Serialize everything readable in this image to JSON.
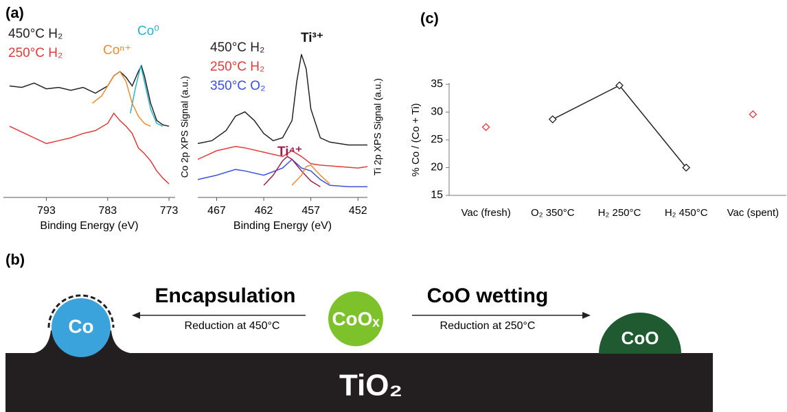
{
  "panel_labels": {
    "a": "(a)",
    "b": "(b)",
    "c": "(c)"
  },
  "chart_data": [
    {
      "type": "line",
      "xlabel": "Binding Energy (eV)",
      "ylabel": "Co 2p XPS Signal (a.u.)",
      "xlim": [
        800,
        772
      ],
      "ylim": [
        0,
        100
      ],
      "xticks": [
        793,
        783,
        773
      ],
      "series": [
        {
          "name": "450°C H₂",
          "color": "#222222",
          "x": [
            799,
            797,
            795,
            793,
            791,
            789,
            787,
            785,
            783,
            782,
            781,
            780,
            779,
            778,
            777.5,
            777,
            776,
            775,
            774,
            773
          ],
          "values": [
            76,
            75,
            78,
            74,
            75,
            73,
            75,
            71,
            76,
            83,
            86,
            82,
            76,
            86,
            90,
            83,
            64,
            52,
            49,
            48
          ]
        },
        {
          "name": "250°C H₂",
          "color": "#e03a3a",
          "x": [
            799,
            797,
            795,
            793,
            791,
            789,
            787,
            785,
            783,
            782,
            781,
            780,
            779,
            778,
            777,
            776,
            775,
            774,
            773
          ],
          "values": [
            48,
            44,
            40,
            36,
            38,
            40,
            43,
            45,
            50,
            57,
            52,
            48,
            43,
            33,
            29,
            24,
            17,
            12,
            8
          ]
        },
        {
          "name": "Co⁰",
          "color": "#26b3c9",
          "x": [
            779.3,
            778.5,
            777.6,
            777,
            776,
            775,
            774
          ],
          "values": [
            57,
            74,
            90,
            79,
            60,
            50,
            48
          ]
        },
        {
          "name": "Coⁿ⁺",
          "color": "#f08a2c",
          "x": [
            785.5,
            784,
            783,
            782,
            781,
            780,
            779,
            778,
            777,
            776
          ],
          "values": [
            64,
            69,
            76,
            83,
            86,
            79,
            64,
            55,
            50,
            48
          ]
        }
      ]
    },
    {
      "type": "line",
      "xlabel": "Binding Energy (eV)",
      "ylabel": "Ti 2p XPS Signal (a.u.)",
      "xlim": [
        469,
        451
      ],
      "ylim": [
        0,
        100
      ],
      "xticks": [
        467,
        462,
        457,
        452
      ],
      "series": [
        {
          "name": "450°C H₂",
          "color": "#222222",
          "x": [
            469,
            467.5,
            466,
            465,
            464,
            463,
            462,
            461,
            460,
            459,
            458.5,
            458,
            457.5,
            457,
            456,
            455,
            454,
            453,
            452,
            451
          ],
          "values": [
            36,
            38,
            45,
            55,
            58,
            52,
            43,
            38,
            40,
            52,
            79,
            98,
            88,
            60,
            40,
            37,
            36,
            35,
            35,
            35
          ]
        },
        {
          "name": "250°C H₂",
          "color": "#e03a3a",
          "x": [
            469,
            467,
            465,
            464,
            462,
            460,
            459,
            458,
            457,
            456,
            454,
            452,
            451
          ],
          "values": [
            25,
            31,
            34,
            33,
            30,
            27,
            31,
            27,
            22,
            21,
            20,
            19,
            20
          ]
        },
        {
          "name": "350°C O₂",
          "color": "#3a4fe0",
          "x": [
            469,
            467,
            465,
            464,
            462,
            460,
            459,
            458,
            457,
            456,
            455,
            453,
            451
          ],
          "values": [
            11,
            14,
            18,
            17,
            14,
            19,
            25,
            19,
            17,
            11,
            7,
            6,
            6
          ]
        },
        {
          "name": "Ti³⁺",
          "color": "#111111",
          "x": [],
          "values": []
        },
        {
          "name": "Ti⁴⁺",
          "color": "#9a1f4f",
          "x": [
            462,
            461,
            460,
            459.5,
            459,
            458,
            457,
            456
          ],
          "values": [
            7,
            14,
            24,
            27,
            25,
            17,
            10,
            6
          ]
        },
        {
          "color": "#f08a2c",
          "x": [
            459,
            458,
            457.5,
            457,
            456,
            455
          ],
          "values": [
            7,
            14,
            20,
            21,
            14,
            8
          ]
        }
      ]
    },
    {
      "type": "line",
      "ylabel": "% Co / (Co + Ti)",
      "categories": [
        "Vac (fresh)",
        "O₂ 350°C",
        "H₂ 250°C",
        "H₂ 450°C",
        "Vac (spent)"
      ],
      "ylim": [
        15,
        35
      ],
      "yticks": [
        15,
        20,
        25,
        30,
        35
      ],
      "series": [
        {
          "color": "#e03a3a",
          "line": false,
          "values": [
            27.3,
            null,
            null,
            null,
            29.6
          ]
        },
        {
          "color": "#222222",
          "line": true,
          "values": [
            null,
            28.7,
            34.8,
            20.0,
            null
          ]
        }
      ]
    }
  ],
  "diagram": {
    "substrate": "TiO₂",
    "co": "Co",
    "coox": "CoOₓ",
    "coo": "CoO",
    "left_arrow": {
      "title": "Encapsulation",
      "note": "Reduction at 450°C"
    },
    "right_arrow": {
      "title": "CoO wetting",
      "note": "Reduction at 250°C"
    }
  }
}
